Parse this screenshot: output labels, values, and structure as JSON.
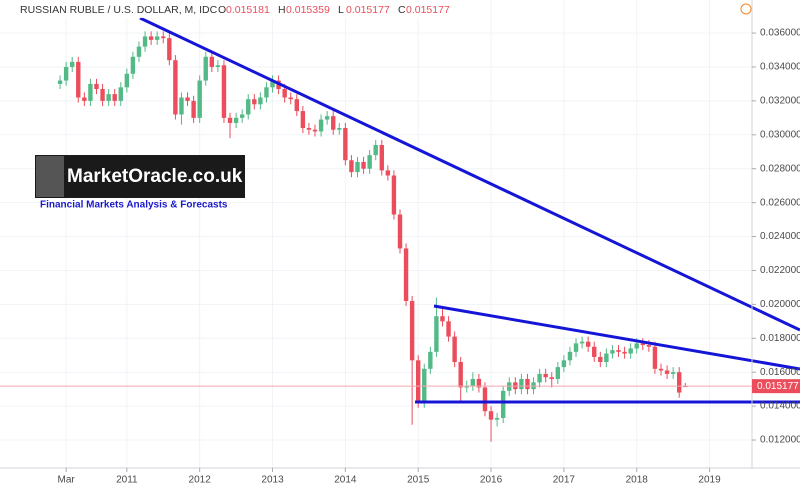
{
  "chart_data": {
    "type": "candlestick",
    "title": "RUSSIAN RUBLE / U.S. DOLLAR, M, IDC",
    "ohlc_labels": [
      "O",
      "H",
      "L",
      "C"
    ],
    "logo": "MarketOracle.co.uk",
    "tagline": "Financial Markets Analysis & Forecasts",
    "up_color": "#53b987",
    "down_color": "#eb4d5c",
    "x": [
      "2010-02",
      "2010-03",
      "2010-04",
      "2010-05",
      "2010-06",
      "2010-07",
      "2010-08",
      "2010-09",
      "2010-10",
      "2010-11",
      "2010-12",
      "2011-01",
      "2011-02",
      "2011-03",
      "2011-04",
      "2011-05",
      "2011-06",
      "2011-07",
      "2011-08",
      "2011-09",
      "2011-10",
      "2011-11",
      "2011-12",
      "2012-01",
      "2012-02",
      "2012-03",
      "2012-04",
      "2012-05",
      "2012-06",
      "2012-07",
      "2012-08",
      "2012-09",
      "2012-10",
      "2012-11",
      "2012-12",
      "2013-01",
      "2013-02",
      "2013-03",
      "2013-04",
      "2013-05",
      "2013-06",
      "2013-07",
      "2013-08",
      "2013-09",
      "2013-10",
      "2013-11",
      "2013-12",
      "2014-01",
      "2014-02",
      "2014-03",
      "2014-04",
      "2014-05",
      "2014-06",
      "2014-07",
      "2014-08",
      "2014-09",
      "2014-10",
      "2014-11",
      "2014-12",
      "2015-01",
      "2015-02",
      "2015-03",
      "2015-04",
      "2015-05",
      "2015-06",
      "2015-07",
      "2015-08",
      "2015-09",
      "2015-10",
      "2015-11",
      "2015-12",
      "2016-01",
      "2016-02",
      "2016-03",
      "2016-04",
      "2016-05",
      "2016-06",
      "2016-07",
      "2016-08",
      "2016-09",
      "2016-10",
      "2016-11",
      "2016-12",
      "2017-01",
      "2017-02",
      "2017-03",
      "2017-04",
      "2017-05",
      "2017-06",
      "2017-07",
      "2017-08",
      "2017-09",
      "2017-10",
      "2017-11",
      "2017-12",
      "2018-01",
      "2018-02",
      "2018-03",
      "2018-04",
      "2018-05",
      "2018-06",
      "2018-07",
      "2018-08",
      "2018-09"
    ],
    "ohlc": [
      [
        0.033,
        0.0335,
        0.0327,
        0.0332
      ],
      [
        0.0332,
        0.0343,
        0.0329,
        0.034
      ],
      [
        0.034,
        0.0346,
        0.0337,
        0.0343
      ],
      [
        0.0343,
        0.0346,
        0.0319,
        0.0322
      ],
      [
        0.0322,
        0.0325,
        0.0317,
        0.032
      ],
      [
        0.032,
        0.0333,
        0.0317,
        0.033
      ],
      [
        0.033,
        0.0333,
        0.0324,
        0.0327
      ],
      [
        0.0327,
        0.033,
        0.0317,
        0.032
      ],
      [
        0.032,
        0.0327,
        0.0317,
        0.0324
      ],
      [
        0.0324,
        0.0327,
        0.0317,
        0.032
      ],
      [
        0.032,
        0.0331,
        0.0317,
        0.0328
      ],
      [
        0.0328,
        0.0339,
        0.0325,
        0.0336
      ],
      [
        0.0336,
        0.0349,
        0.0333,
        0.0346
      ],
      [
        0.0346,
        0.0355,
        0.0343,
        0.0352
      ],
      [
        0.0352,
        0.0361,
        0.0349,
        0.0358
      ],
      [
        0.0358,
        0.0361,
        0.0353,
        0.0356
      ],
      [
        0.0356,
        0.0361,
        0.0353,
        0.0358
      ],
      [
        0.0358,
        0.0361,
        0.0354,
        0.0357
      ],
      [
        0.0357,
        0.036,
        0.0341,
        0.0344
      ],
      [
        0.0344,
        0.0347,
        0.0309,
        0.0312
      ],
      [
        0.0312,
        0.0325,
        0.0306,
        0.0322
      ],
      [
        0.0322,
        0.0325,
        0.0317,
        0.032
      ],
      [
        0.032,
        0.0323,
        0.0307,
        0.031
      ],
      [
        0.031,
        0.0335,
        0.0307,
        0.0332
      ],
      [
        0.0332,
        0.0349,
        0.0329,
        0.0346
      ],
      [
        0.0346,
        0.0349,
        0.0337,
        0.034
      ],
      [
        0.034,
        0.0344,
        0.0337,
        0.0341
      ],
      [
        0.0341,
        0.0344,
        0.0307,
        0.031
      ],
      [
        0.031,
        0.0313,
        0.0298,
        0.0307
      ],
      [
        0.0307,
        0.0313,
        0.0304,
        0.031
      ],
      [
        0.031,
        0.0315,
        0.0307,
        0.0312
      ],
      [
        0.0312,
        0.0324,
        0.0309,
        0.0321
      ],
      [
        0.0321,
        0.0324,
        0.0315,
        0.0318
      ],
      [
        0.0318,
        0.0325,
        0.0315,
        0.0322
      ],
      [
        0.0322,
        0.0331,
        0.0319,
        0.0328
      ],
      [
        0.0328,
        0.0335,
        0.0325,
        0.0332
      ],
      [
        0.0332,
        0.0335,
        0.0324,
        0.0327
      ],
      [
        0.0327,
        0.033,
        0.0319,
        0.0322
      ],
      [
        0.0322,
        0.0325,
        0.0318,
        0.0321
      ],
      [
        0.0321,
        0.0324,
        0.0311,
        0.0314
      ],
      [
        0.0314,
        0.0317,
        0.0301,
        0.0304
      ],
      [
        0.0304,
        0.0307,
        0.03,
        0.0303
      ],
      [
        0.0303,
        0.0306,
        0.0299,
        0.0302
      ],
      [
        0.0302,
        0.0312,
        0.0299,
        0.0309
      ],
      [
        0.0309,
        0.0314,
        0.0306,
        0.0311
      ],
      [
        0.0311,
        0.0314,
        0.03,
        0.0303
      ],
      [
        0.0303,
        0.0307,
        0.03,
        0.0304
      ],
      [
        0.0304,
        0.0307,
        0.0282,
        0.0285
      ],
      [
        0.0285,
        0.0288,
        0.0275,
        0.0278
      ],
      [
        0.0278,
        0.0287,
        0.0275,
        0.0284
      ],
      [
        0.0284,
        0.0287,
        0.0277,
        0.028
      ],
      [
        0.028,
        0.0291,
        0.0277,
        0.0288
      ],
      [
        0.0288,
        0.0297,
        0.0285,
        0.0294
      ],
      [
        0.0294,
        0.0297,
        0.0276,
        0.0279
      ],
      [
        0.0279,
        0.0282,
        0.0273,
        0.0276
      ],
      [
        0.0276,
        0.0279,
        0.025,
        0.0253
      ],
      [
        0.0253,
        0.0256,
        0.023,
        0.0233
      ],
      [
        0.0233,
        0.0236,
        0.0199,
        0.0202
      ],
      [
        0.0202,
        0.0205,
        0.0129,
        0.0167
      ],
      [
        0.0167,
        0.017,
        0.0139,
        0.0142
      ],
      [
        0.0142,
        0.0165,
        0.0139,
        0.0162
      ],
      [
        0.0162,
        0.0175,
        0.0159,
        0.0172
      ],
      [
        0.0172,
        0.0204,
        0.0169,
        0.0193
      ],
      [
        0.0193,
        0.0198,
        0.0187,
        0.019
      ],
      [
        0.019,
        0.0193,
        0.0178,
        0.0181
      ],
      [
        0.0181,
        0.0184,
        0.0163,
        0.0166
      ],
      [
        0.0166,
        0.0169,
        0.0143,
        0.0151
      ],
      [
        0.0151,
        0.0155,
        0.0148,
        0.0152
      ],
      [
        0.0152,
        0.016,
        0.0149,
        0.0156
      ],
      [
        0.0156,
        0.0159,
        0.0148,
        0.0151
      ],
      [
        0.0151,
        0.0154,
        0.0134,
        0.0137
      ],
      [
        0.0137,
        0.014,
        0.0119,
        0.0132
      ],
      [
        0.0132,
        0.0136,
        0.0128,
        0.0133
      ],
      [
        0.0133,
        0.0152,
        0.013,
        0.0149
      ],
      [
        0.0149,
        0.0157,
        0.0146,
        0.0154
      ],
      [
        0.0154,
        0.0157,
        0.0147,
        0.015
      ],
      [
        0.015,
        0.0159,
        0.0147,
        0.0156
      ],
      [
        0.0156,
        0.0159,
        0.0147,
        0.015
      ],
      [
        0.015,
        0.0157,
        0.0147,
        0.0154
      ],
      [
        0.0154,
        0.0162,
        0.0151,
        0.0159
      ],
      [
        0.0159,
        0.0162,
        0.0154,
        0.0157
      ],
      [
        0.0157,
        0.016,
        0.0151,
        0.0156
      ],
      [
        0.0156,
        0.0166,
        0.0153,
        0.0163
      ],
      [
        0.0163,
        0.017,
        0.016,
        0.0167
      ],
      [
        0.0167,
        0.0175,
        0.0164,
        0.0172
      ],
      [
        0.0172,
        0.018,
        0.0169,
        0.0177
      ],
      [
        0.0177,
        0.0181,
        0.0174,
        0.0178
      ],
      [
        0.0178,
        0.0181,
        0.0172,
        0.0175
      ],
      [
        0.0175,
        0.0178,
        0.0166,
        0.0169
      ],
      [
        0.0169,
        0.0172,
        0.0163,
        0.0166
      ],
      [
        0.0166,
        0.0174,
        0.0163,
        0.0171
      ],
      [
        0.0171,
        0.0176,
        0.0168,
        0.0173
      ],
      [
        0.0173,
        0.0176,
        0.0169,
        0.0172
      ],
      [
        0.0172,
        0.0175,
        0.0168,
        0.0171
      ],
      [
        0.0171,
        0.0177,
        0.0168,
        0.0174
      ],
      [
        0.0174,
        0.018,
        0.0171,
        0.0177
      ],
      [
        0.0177,
        0.018,
        0.0173,
        0.0176
      ],
      [
        0.0176,
        0.0179,
        0.0172,
        0.0175
      ],
      [
        0.0175,
        0.0178,
        0.0159,
        0.0162
      ],
      [
        0.0162,
        0.0165,
        0.0158,
        0.0161
      ],
      [
        0.0161,
        0.0164,
        0.0156,
        0.0159
      ],
      [
        0.0159,
        0.0163,
        0.0156,
        0.016
      ],
      [
        0.016,
        0.0163,
        0.0145,
        0.0148
      ],
      [
        0.015181,
        0.015359,
        0.015177,
        0.015177
      ]
    ],
    "ylim": [
      0.01035,
      0.03795
    ],
    "yticks": [
      {
        "value": 0.012,
        "label": "0.012000"
      },
      {
        "value": 0.014,
        "label": "0.014000"
      },
      {
        "value": 0.016,
        "label": "0.016000"
      },
      {
        "value": 0.018,
        "label": "0.018000"
      },
      {
        "value": 0.02,
        "label": "0.020000"
      },
      {
        "value": 0.022,
        "label": "0.022000"
      },
      {
        "value": 0.024,
        "label": "0.024000"
      },
      {
        "value": 0.026,
        "label": "0.026000"
      },
      {
        "value": 0.028,
        "label": "0.028000"
      },
      {
        "value": 0.03,
        "label": "0.030000"
      },
      {
        "value": 0.032,
        "label": "0.032000"
      },
      {
        "value": 0.034,
        "label": "0.034000"
      },
      {
        "value": 0.036,
        "label": "0.036000"
      }
    ],
    "xticks": [
      {
        "value": "2010-03",
        "label": "Mar"
      },
      {
        "value": "2011-01",
        "label": "2011"
      },
      {
        "value": "2012-01",
        "label": "2012"
      },
      {
        "value": "2013-01",
        "label": "2013"
      },
      {
        "value": "2014-01",
        "label": "2014"
      },
      {
        "value": "2015-01",
        "label": "2015"
      },
      {
        "value": "2016-01",
        "label": "2016"
      },
      {
        "value": "2017-01",
        "label": "2017"
      },
      {
        "value": "2018-01",
        "label": "2018"
      },
      {
        "value": "2019-01",
        "label": "2019"
      }
    ],
    "grid": true
  }
}
